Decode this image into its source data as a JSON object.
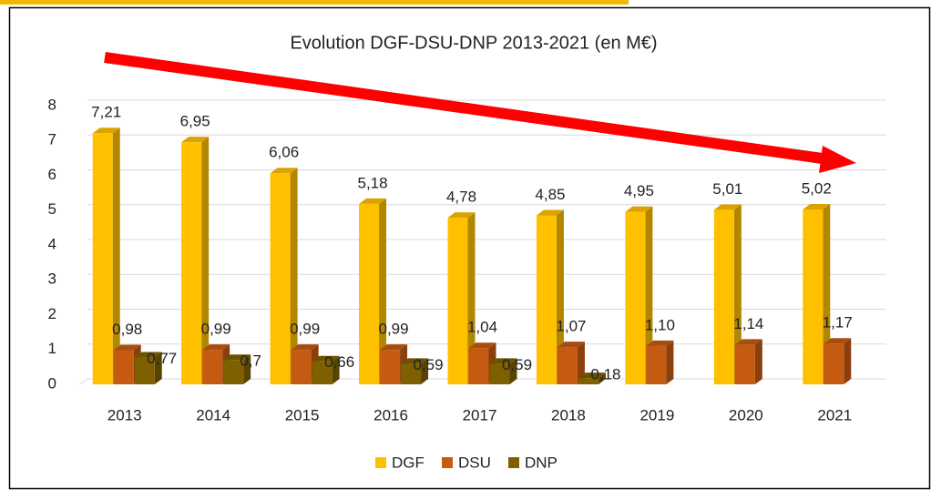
{
  "chart_data": {
    "type": "bar",
    "title": "Evolution DGF-DSU-DNP 2013-2021 (en M€)",
    "categories": [
      "2013",
      "2014",
      "2015",
      "2016",
      "2017",
      "2018",
      "2019",
      "2020",
      "2021"
    ],
    "series": [
      {
        "name": "DGF",
        "color": "#ffc000",
        "values": [
          7.21,
          6.95,
          6.06,
          5.18,
          4.78,
          4.85,
          4.95,
          5.01,
          5.02
        ],
        "value_labels": [
          "7,21",
          "6,95",
          "6,06",
          "5,18",
          "4,78",
          "4,85",
          "4,95",
          "5,01",
          "5,02"
        ]
      },
      {
        "name": "DSU",
        "color": "#c55a11",
        "values": [
          0.98,
          0.99,
          0.99,
          0.99,
          1.04,
          1.07,
          1.1,
          1.14,
          1.17
        ],
        "value_labels": [
          "0,98",
          "0,99",
          "0,99",
          "0,99",
          "1,04",
          "1,07",
          "1,10",
          "1,14",
          "1,17"
        ]
      },
      {
        "name": "DNP",
        "color": "#7f6000",
        "values": [
          0.77,
          0.7,
          0.66,
          0.59,
          0.59,
          0.18,
          null,
          null,
          null
        ],
        "value_labels": [
          "0,77",
          "0,7",
          "0,66",
          "0,59",
          "0,59",
          "0,18",
          null,
          null,
          null
        ]
      }
    ],
    "ylim": [
      0,
      8
    ],
    "yticks": [
      0,
      1,
      2,
      3,
      4,
      5,
      6,
      7,
      8
    ],
    "grid": true,
    "legend": "bottom"
  }
}
